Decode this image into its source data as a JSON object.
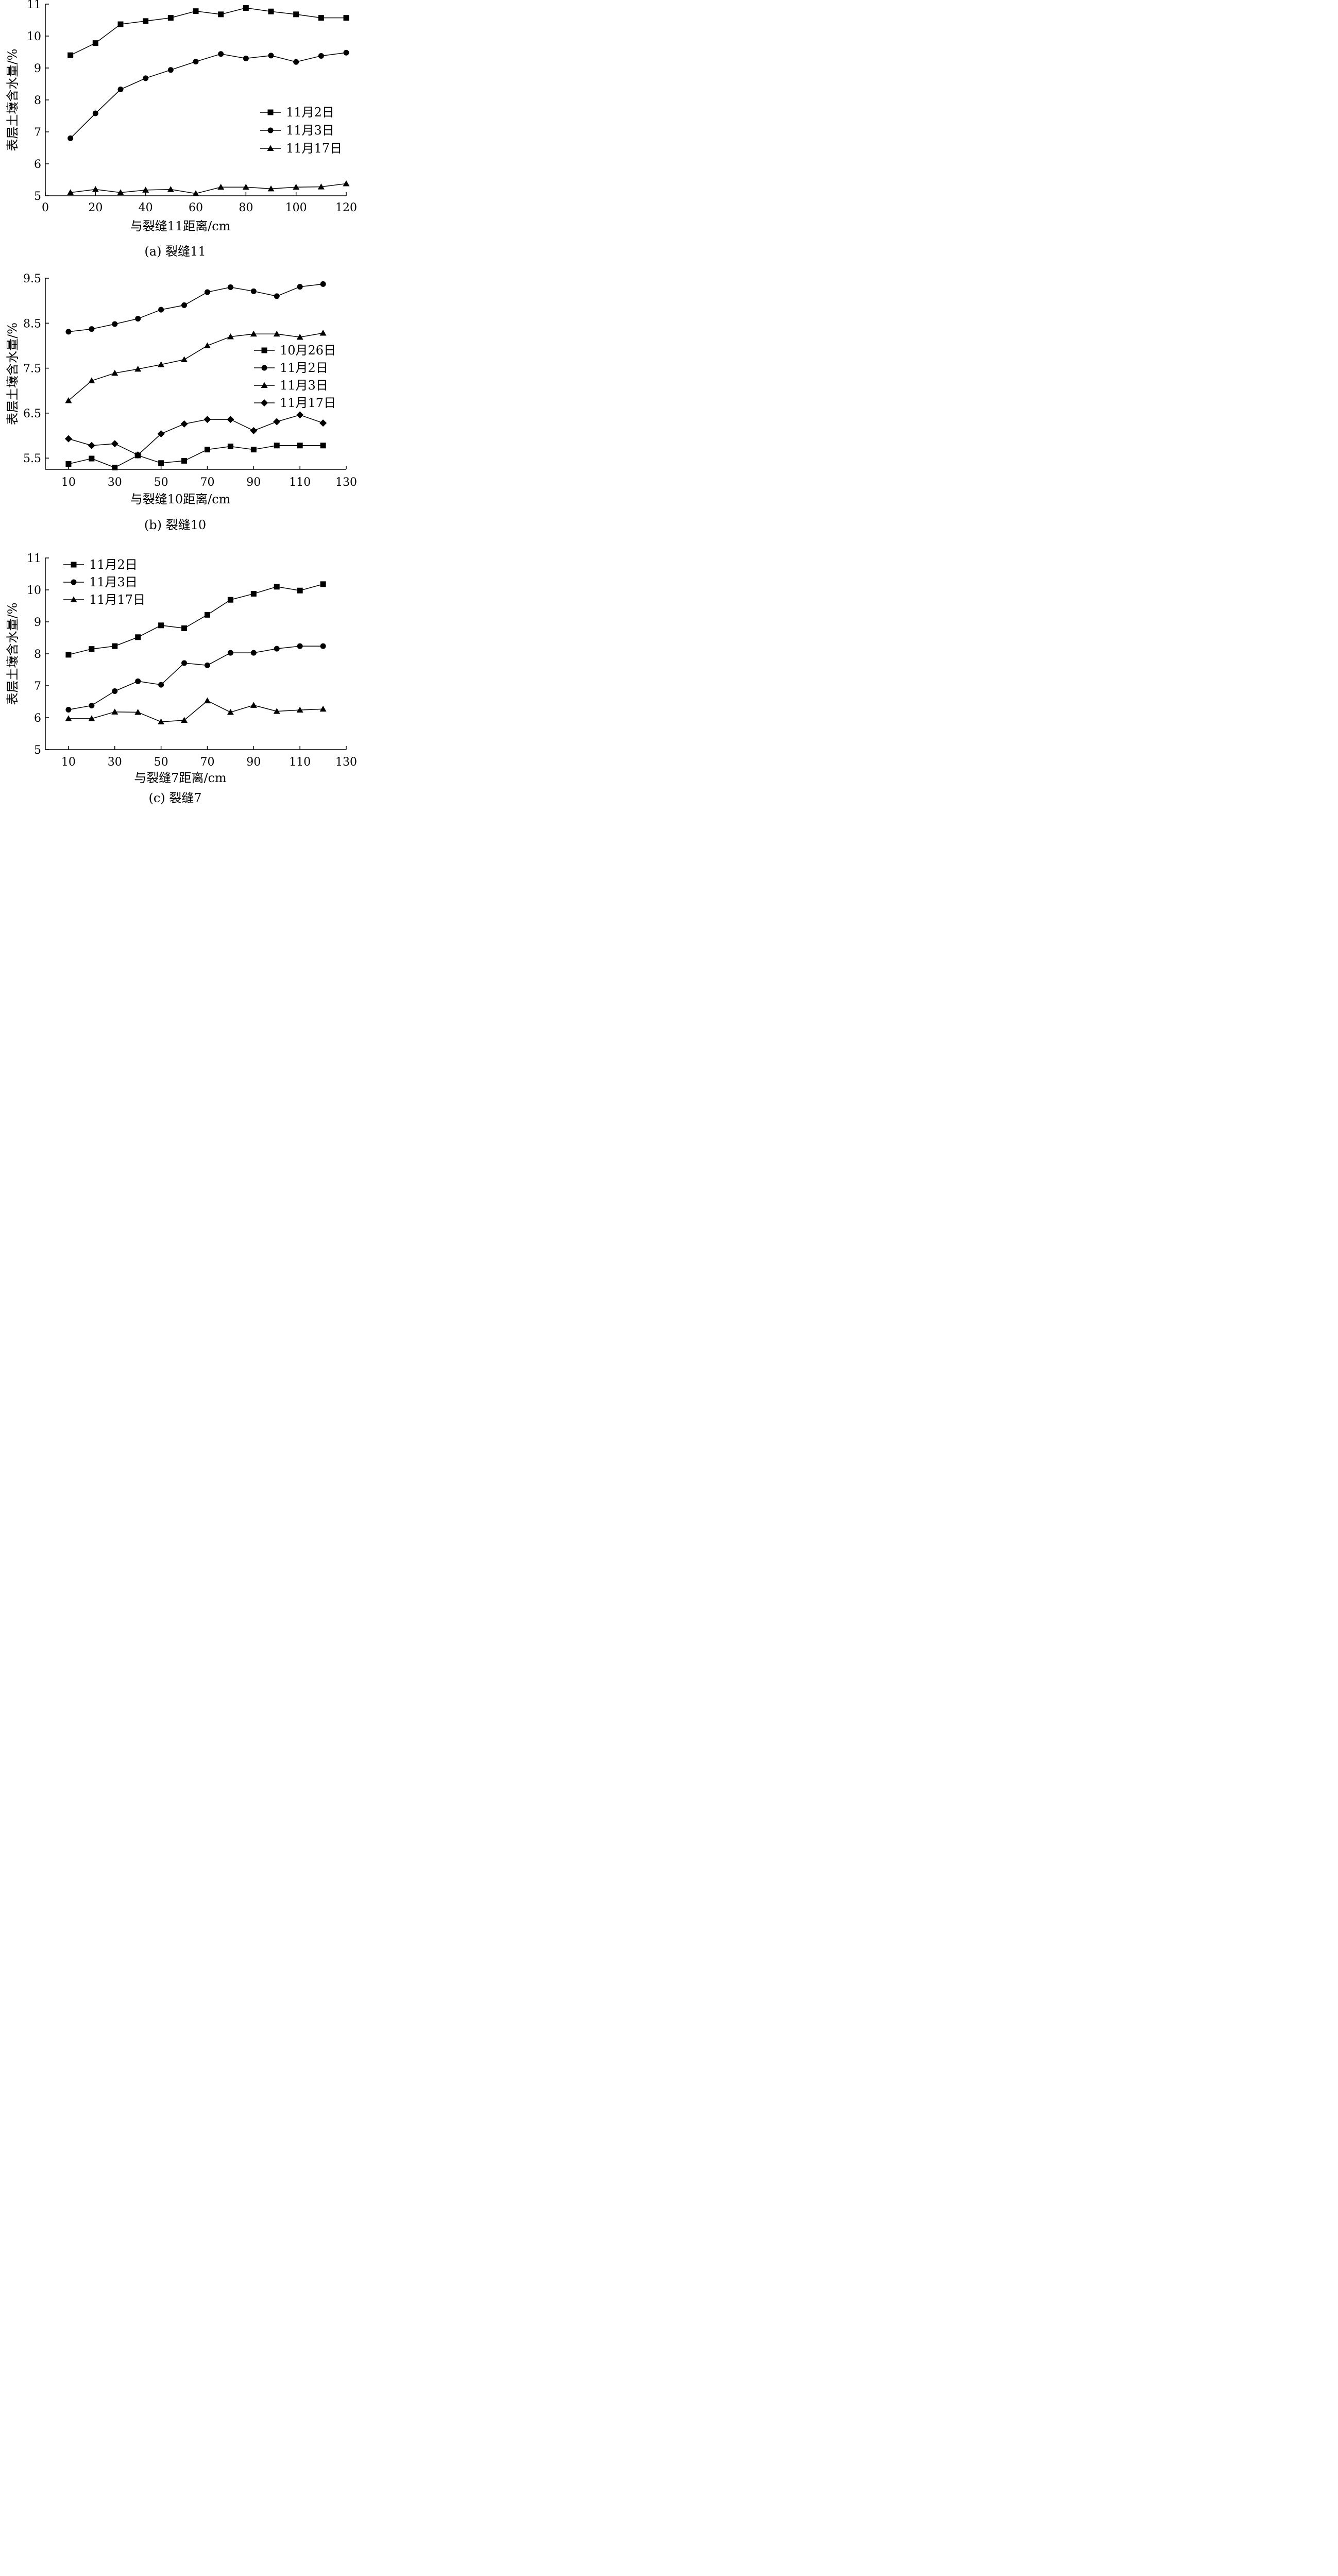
{
  "chart_data": [
    {
      "type": "line",
      "caption": "(a)  裂缝11",
      "xlabel": "与裂缝11距离/cm",
      "ylabel": "表层土壤含水量/%",
      "xlim": [
        0,
        120
      ],
      "ylim": [
        5,
        11
      ],
      "xticks": [
        0,
        20,
        40,
        60,
        80,
        100,
        120
      ],
      "yticks": [
        5,
        6,
        7,
        8,
        9,
        10,
        11
      ],
      "grid": false,
      "legend_position": "middle-right",
      "x": [
        10,
        20,
        30,
        40,
        50,
        60,
        70,
        80,
        90,
        100,
        110,
        120
      ],
      "series": [
        {
          "name": "11月2日",
          "marker": "square",
          "values": [
            9.4,
            9.78,
            10.37,
            10.47,
            10.57,
            10.78,
            10.68,
            10.88,
            10.77,
            10.68,
            10.57,
            10.57
          ]
        },
        {
          "name": "11月3日",
          "marker": "circle",
          "values": [
            6.8,
            7.58,
            8.33,
            8.68,
            8.94,
            9.2,
            9.44,
            9.3,
            9.39,
            9.19,
            9.38,
            9.48
          ]
        },
        {
          "name": "11月17日",
          "marker": "triangle",
          "values": [
            5.1,
            5.2,
            5.1,
            5.18,
            5.2,
            5.07,
            5.27,
            5.27,
            5.22,
            5.27,
            5.28,
            5.38
          ]
        }
      ]
    },
    {
      "type": "line",
      "caption": "(b)  裂缝10",
      "xlabel": "与裂缝10距离/cm",
      "ylabel": "表层土壤含水量/%",
      "xlim": [
        0,
        130
      ],
      "ylim": [
        5.25,
        9.5
      ],
      "xticks": [
        10,
        30,
        50,
        70,
        90,
        110,
        130
      ],
      "yticks": [
        5.5,
        6.5,
        7.5,
        8.5,
        9.5
      ],
      "grid": false,
      "legend_position": "middle-right",
      "x": [
        10,
        20,
        30,
        40,
        50,
        60,
        70,
        80,
        90,
        100,
        110,
        120
      ],
      "series": [
        {
          "name": "10月26日",
          "marker": "square",
          "values": [
            5.37,
            5.49,
            5.29,
            5.56,
            5.39,
            5.44,
            5.69,
            5.76,
            5.69,
            5.78,
            5.78,
            5.78
          ]
        },
        {
          "name": "11月2日",
          "marker": "circle",
          "values": [
            8.31,
            8.37,
            8.48,
            8.6,
            8.8,
            8.9,
            9.19,
            9.3,
            9.21,
            9.1,
            9.31,
            9.37
          ]
        },
        {
          "name": "11月3日",
          "marker": "triangle",
          "values": [
            6.78,
            7.22,
            7.39,
            7.48,
            7.58,
            7.69,
            8.0,
            8.2,
            8.26,
            8.26,
            8.19,
            8.28
          ]
        },
        {
          "name": "11月17日",
          "marker": "diamond",
          "values": [
            5.93,
            5.78,
            5.82,
            5.57,
            6.04,
            6.26,
            6.36,
            6.36,
            6.11,
            6.31,
            6.46,
            6.28
          ]
        }
      ]
    },
    {
      "type": "line",
      "caption": "(c)  裂缝7",
      "xlabel": "与裂缝7距离/cm",
      "ylabel": "表层土壤含水量/%",
      "xlim": [
        0,
        130
      ],
      "ylim": [
        5,
        11
      ],
      "xticks": [
        10,
        30,
        50,
        70,
        90,
        110,
        130
      ],
      "yticks": [
        5,
        6,
        7,
        8,
        9,
        10,
        11
      ],
      "grid": false,
      "legend_position": "top-left",
      "x": [
        10,
        20,
        30,
        40,
        50,
        60,
        70,
        80,
        90,
        100,
        110,
        120
      ],
      "series": [
        {
          "name": "11月2日",
          "marker": "square",
          "values": [
            7.97,
            8.15,
            8.24,
            8.52,
            8.89,
            8.8,
            9.22,
            9.69,
            9.88,
            10.1,
            9.98,
            10.18
          ]
        },
        {
          "name": "11月3日",
          "marker": "circle",
          "values": [
            6.25,
            6.38,
            6.83,
            7.14,
            7.03,
            7.71,
            7.64,
            8.03,
            8.03,
            8.16,
            8.24,
            8.24
          ]
        },
        {
          "name": "11月17日",
          "marker": "triangle",
          "values": [
            5.97,
            5.97,
            6.18,
            6.17,
            5.87,
            5.92,
            6.53,
            6.17,
            6.39,
            6.2,
            6.24,
            6.27
          ]
        }
      ]
    }
  ]
}
